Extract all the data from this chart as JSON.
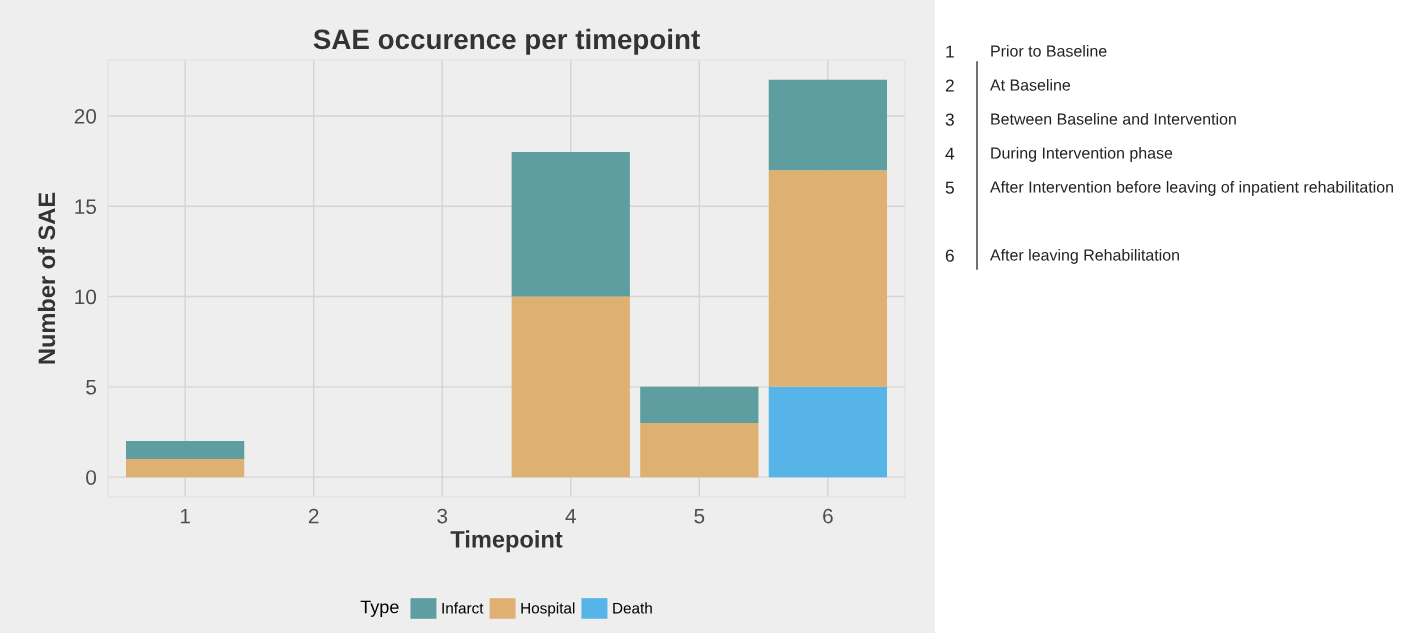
{
  "chart_data": {
    "type": "bar",
    "title": "SAE occurence per timepoint",
    "xlabel": "Timepoint",
    "ylabel": "Number of SAE",
    "categories": [
      "1",
      "2",
      "3",
      "4",
      "5",
      "6"
    ],
    "stacked": true,
    "legend": "bottom",
    "legend_title": "Type",
    "grid": true,
    "ylim": [
      -1.1,
      23.1
    ],
    "yticks": [
      0,
      5,
      10,
      15,
      20
    ],
    "series": [
      {
        "name": "Death",
        "color": "#56b4e9",
        "values": [
          0,
          0,
          0,
          0,
          0,
          5
        ]
      },
      {
        "name": "Hospital",
        "color": "#deb072",
        "values": [
          1,
          0,
          0,
          10,
          3,
          12
        ]
      },
      {
        "name": "Infarct",
        "color": "#5f9ea0",
        "values": [
          1,
          0,
          0,
          8,
          2,
          5
        ]
      }
    ],
    "annotations": [
      "1 Prior to Baseline",
      "2 At Baseline",
      "3 Between Baseline and Intervention",
      "4 During Intervention phase",
      "5 After Intervention before leaving of inpatient rehabilitation",
      "6 After leaving Rehabilitation"
    ]
  }
}
